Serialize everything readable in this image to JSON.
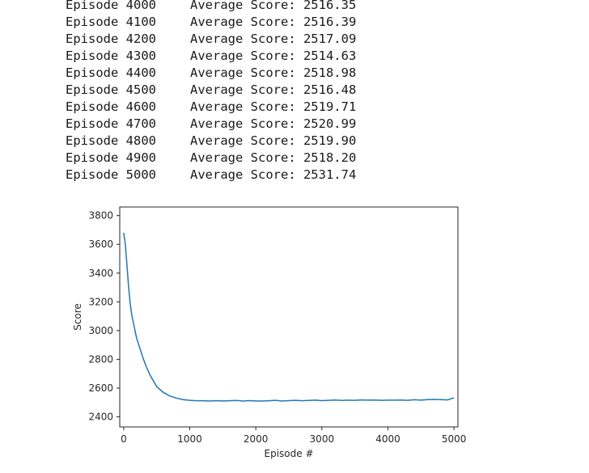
{
  "log": {
    "lines": [
      {
        "episode": "Episode 4000",
        "score": "Average Score: 2516.35"
      },
      {
        "episode": "Episode 4100",
        "score": "Average Score: 2516.39"
      },
      {
        "episode": "Episode 4200",
        "score": "Average Score: 2517.09"
      },
      {
        "episode": "Episode 4300",
        "score": "Average Score: 2514.63"
      },
      {
        "episode": "Episode 4400",
        "score": "Average Score: 2518.98"
      },
      {
        "episode": "Episode 4500",
        "score": "Average Score: 2516.48"
      },
      {
        "episode": "Episode 4600",
        "score": "Average Score: 2519.71"
      },
      {
        "episode": "Episode 4700",
        "score": "Average Score: 2520.99"
      },
      {
        "episode": "Episode 4800",
        "score": "Average Score: 2519.90"
      },
      {
        "episode": "Episode 4900",
        "score": "Average Score: 2518.20"
      },
      {
        "episode": "Episode 5000",
        "score": "Average Score: 2531.74"
      }
    ]
  },
  "chart_data": {
    "type": "line",
    "title": "",
    "xlabel": "Episode #",
    "ylabel": "Score",
    "xlim": [
      -60,
      5060
    ],
    "ylim": [
      2330,
      3860
    ],
    "xticks": [
      0,
      1000,
      2000,
      3000,
      4000,
      5000
    ],
    "yticks": [
      2400,
      2600,
      2800,
      3000,
      3200,
      3400,
      3600,
      3800
    ],
    "grid": false,
    "line_color": "#1f77b4",
    "series": [
      {
        "x": [
          0,
          25,
          50,
          75,
          100,
          125,
          150,
          175,
          200,
          250,
          300,
          350,
          400,
          450,
          500,
          600,
          700,
          800,
          900,
          1000,
          1100,
          1200,
          1300,
          1400,
          1500,
          1600,
          1700,
          1800,
          1900,
          2000,
          2100,
          2200,
          2300,
          2400,
          2500,
          2600,
          2700,
          2800,
          2900,
          3000,
          3100,
          3200,
          3300,
          3400,
          3500,
          3600,
          3700,
          3800,
          3900,
          4000,
          4100,
          4200,
          4300,
          4400,
          4500,
          4600,
          4700,
          4800,
          4900,
          5000
        ],
        "values": [
          3680,
          3600,
          3450,
          3300,
          3180,
          3100,
          3050,
          2990,
          2940,
          2870,
          2800,
          2740,
          2690,
          2650,
          2610,
          2570,
          2545,
          2530,
          2520,
          2515,
          2512,
          2512,
          2510,
          2513,
          2511,
          2512,
          2514,
          2510,
          2513,
          2511,
          2510,
          2512,
          2515,
          2510,
          2513,
          2515,
          2512,
          2514,
          2516,
          2513,
          2515,
          2517,
          2514,
          2516,
          2515,
          2518,
          2516,
          2517,
          2515,
          2516,
          2516,
          2517,
          2515,
          2519,
          2516,
          2520,
          2521,
          2520,
          2518,
          2532
        ]
      }
    ]
  }
}
